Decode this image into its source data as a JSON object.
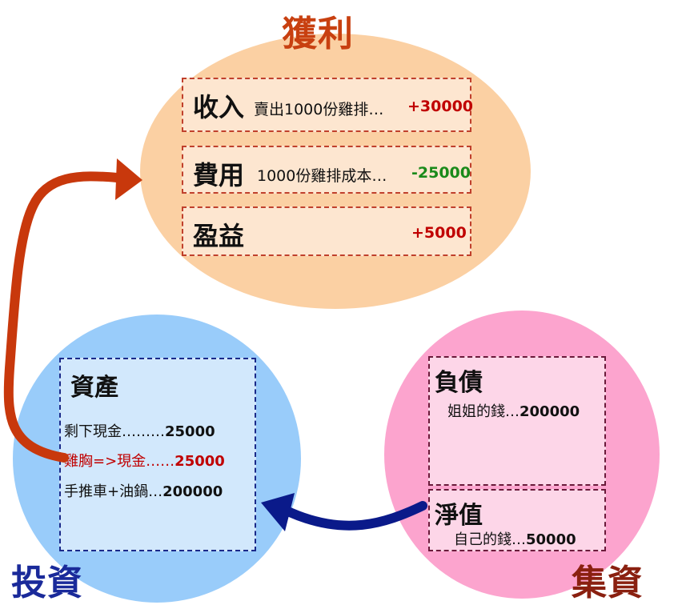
{
  "titles": {
    "profit": "獲利",
    "invest": "投資",
    "finance": "集資"
  },
  "profit": {
    "income": {
      "label": "收入",
      "desc": "賣出1000份雞排…",
      "amount": "+30000"
    },
    "expense": {
      "label": "費用",
      "desc": "1000份雞排成本…",
      "amount": "-25000"
    },
    "earnings": {
      "label": "盈益",
      "amount": "+5000"
    }
  },
  "assets": {
    "label": "資產",
    "items": [
      {
        "text": "剩下現金………",
        "value": "25000"
      },
      {
        "text": "雞胸=>現金……",
        "value": "25000"
      },
      {
        "text": "手推車+油鍋…",
        "value": "200000"
      }
    ]
  },
  "liabilities": {
    "label": "負債",
    "item": {
      "text": "姐姐的錢…",
      "value": "200000"
    }
  },
  "equity": {
    "label": "淨值",
    "item": {
      "text": "自己的錢…",
      "value": "50000"
    }
  },
  "colors": {
    "profit_area": "#fbd0a3",
    "invest_area": "#99ccfa",
    "finance_area": "#fca4ce",
    "arrow_to_profit": "#c8380c",
    "arrow_to_invest": "#0a1a8a",
    "positive_amount": "#c00000",
    "negative_amount": "#1a8a1a"
  }
}
